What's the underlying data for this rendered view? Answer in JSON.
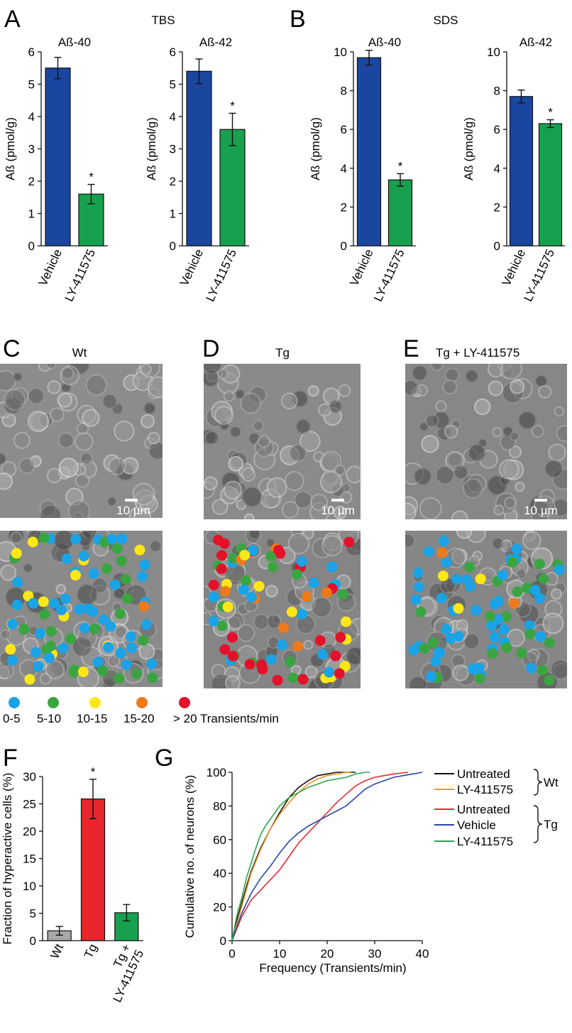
{
  "colors": {
    "vehicle": "#1b46a0",
    "ly": "#17a04e",
    "wt_bar": "#a8a8a8",
    "tg_bar": "#e8262b",
    "dot_0_5": "#1aa3e6",
    "dot_5_10": "#3aa540",
    "dot_10_15": "#ffe717",
    "dot_15_20": "#ee7a1a",
    "dot_20p": "#e3122a",
    "cum_wt_untreated": "#111111",
    "cum_wt_ly": "#f0952a",
    "cum_tg_untreated": "#e32b35",
    "cum_tg_vehicle": "#2546a8",
    "cum_tg_ly": "#2ca54a"
  },
  "panels": {
    "A": {
      "letter": "A",
      "group": "TBS"
    },
    "B": {
      "letter": "B",
      "group": "SDS"
    },
    "C": {
      "letter": "C",
      "title": "Wt",
      "scale": "10 µm"
    },
    "D": {
      "letter": "D",
      "title": "Tg",
      "scale": "10 µm"
    },
    "E": {
      "letter": "E",
      "title": "Tg + LY-411575",
      "scale": "10 µm"
    },
    "F": {
      "letter": "F"
    },
    "G": {
      "letter": "G"
    }
  },
  "legend_transients": {
    "items": [
      "0-5",
      "5-10",
      "10-15",
      "15-20",
      "> 20 Transients/min"
    ]
  },
  "chart_data": [
    {
      "id": "A1",
      "type": "bar",
      "title": "Aß-40",
      "ylabel": "Aß (pmol/g)",
      "categories": [
        "Vehicle",
        "LY-411575"
      ],
      "values": [
        5.5,
        1.6
      ],
      "errors": [
        0.33,
        0.3
      ],
      "ylim": [
        0,
        6
      ],
      "yticks": [
        "0",
        "1",
        "2",
        "3",
        "4",
        "5",
        "6"
      ],
      "annotations": [
        "",
        "*"
      ]
    },
    {
      "id": "A2",
      "type": "bar",
      "title": "Aß-42",
      "ylabel": "Aß (pmol/g)",
      "categories": [
        "Vehicle",
        "LY-411575"
      ],
      "values": [
        5.4,
        3.6
      ],
      "errors": [
        0.38,
        0.5
      ],
      "ylim": [
        0,
        6
      ],
      "yticks": [
        "0",
        "1",
        "2",
        "3",
        "4",
        "5",
        "6"
      ],
      "annotations": [
        "",
        "*"
      ]
    },
    {
      "id": "B1",
      "type": "bar",
      "title": "Aß-40",
      "ylabel": "Aß (pmol/g)",
      "categories": [
        "Vehicle",
        "LY-411575"
      ],
      "values": [
        9.7,
        3.4
      ],
      "errors": [
        0.38,
        0.32
      ],
      "ylim": [
        0,
        10
      ],
      "yticks": [
        "0",
        "2",
        "4",
        "6",
        "8",
        "10"
      ],
      "annotations": [
        "",
        "*"
      ]
    },
    {
      "id": "B2",
      "type": "bar",
      "title": "Aß-42",
      "ylabel": "Aß (pmol/g)",
      "categories": [
        "Vehicle",
        "LY-411575"
      ],
      "values": [
        7.7,
        6.3
      ],
      "errors": [
        0.33,
        0.2
      ],
      "ylim": [
        0,
        10
      ],
      "yticks": [
        "0",
        "2",
        "4",
        "6",
        "8",
        "10"
      ],
      "annotations": [
        "",
        "*"
      ]
    },
    {
      "id": "F",
      "type": "bar",
      "title": "",
      "ylabel": "Fraction of hyperactive cells (%)",
      "categories": [
        "Wt",
        "Tg",
        "Tg +\nLY-411575"
      ],
      "values": [
        1.8,
        25.9,
        5.1
      ],
      "errors": [
        0.8,
        3.6,
        1.5
      ],
      "ylim": [
        0,
        30
      ],
      "yticks": [
        "0",
        "5",
        "10",
        "15",
        "20",
        "25",
        "30"
      ],
      "annotations": [
        "",
        "*",
        ""
      ]
    },
    {
      "id": "G",
      "type": "line",
      "title": "",
      "xlabel": "Frequency (Transients/min)",
      "ylabel": "Cumulative no. of neurons (%)",
      "xlim": [
        0,
        40
      ],
      "ylim": [
        0,
        100
      ],
      "xticks": [
        "0",
        "10",
        "20",
        "30",
        "40"
      ],
      "yticks": [
        "0",
        "20",
        "40",
        "60",
        "80",
        "100"
      ],
      "series": [
        {
          "name": "Untreated",
          "group": "Wt",
          "x": [
            0,
            1,
            2,
            3,
            4,
            5,
            6,
            8,
            10,
            12,
            14,
            16,
            18,
            20,
            22,
            24,
            26
          ],
          "y": [
            0,
            12,
            22,
            32,
            41,
            48,
            55,
            66,
            76,
            85,
            91,
            95,
            98,
            99,
            100,
            100,
            100
          ]
        },
        {
          "name": "LY-411575",
          "group": "Wt",
          "x": [
            0,
            1,
            2,
            3,
            4,
            5,
            6,
            8,
            10,
            12,
            14,
            16,
            18,
            20,
            22,
            24,
            25
          ],
          "y": [
            0,
            10,
            20,
            30,
            40,
            47,
            54,
            66,
            75,
            82,
            88,
            93,
            96,
            98,
            99,
            100,
            100
          ]
        },
        {
          "name": "Untreated",
          "group": "Tg",
          "x": [
            0,
            2,
            4,
            6,
            8,
            10,
            12,
            14,
            16,
            18,
            20,
            22,
            24,
            26,
            28,
            30,
            32,
            34,
            37
          ],
          "y": [
            0,
            14,
            24,
            30,
            36,
            42,
            50,
            58,
            64,
            70,
            76,
            82,
            87,
            92,
            95,
            97,
            98,
            99,
            100
          ]
        },
        {
          "name": "Vehicle",
          "group": "Tg",
          "x": [
            0,
            2,
            4,
            6,
            8,
            10,
            12,
            14,
            16,
            18,
            20,
            22,
            24,
            26,
            28,
            30,
            32,
            34,
            36,
            38,
            40
          ],
          "y": [
            0,
            16,
            28,
            37,
            44,
            52,
            59,
            64,
            68,
            71,
            74,
            77,
            80,
            85,
            90,
            93,
            95,
            97,
            98,
            99,
            100
          ]
        },
        {
          "name": "LY-411575",
          "group": "Tg",
          "x": [
            0,
            1,
            2,
            3,
            4,
            5,
            6,
            7,
            8,
            10,
            12,
            14,
            16,
            18,
            20,
            22,
            24,
            26,
            28,
            29
          ],
          "y": [
            0,
            15,
            25,
            37,
            46,
            55,
            63,
            68,
            72,
            80,
            85,
            88,
            91,
            93,
            95,
            96,
            97,
            99,
            100,
            100
          ]
        }
      ],
      "legend": {
        "wt_label": "Wt",
        "tg_label": "Tg",
        "entries": [
          "Untreated",
          "LY-411575",
          "Untreated",
          "Vehicle",
          "LY-411575"
        ]
      }
    }
  ]
}
